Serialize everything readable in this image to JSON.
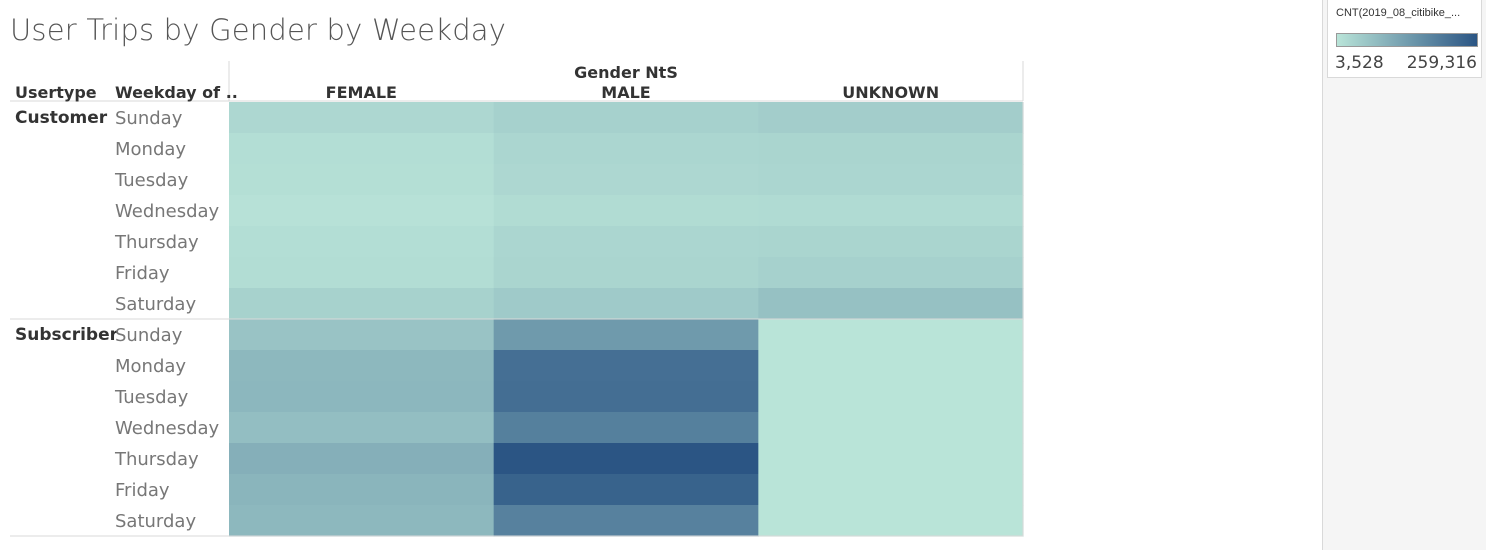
{
  "chart_data": {
    "type": "heatmap",
    "title": "User Trips by Gender by Weekday",
    "column_field_label": "Gender NtS",
    "row_field_labels": [
      "Usertype",
      "Weekday of .."
    ],
    "columns": [
      "FEMALE",
      "MALE",
      "UNKNOWN"
    ],
    "row_groups": [
      {
        "name": "Customer",
        "days": [
          "Sunday",
          "Monday",
          "Tuesday",
          "Wednesday",
          "Thursday",
          "Friday",
          "Saturday"
        ],
        "values": [
          [
            26000,
            37000,
            44000
          ],
          [
            14000,
            28000,
            30000
          ],
          [
            12000,
            26000,
            29000
          ],
          [
            8000,
            18000,
            20000
          ],
          [
            14000,
            28000,
            30000
          ],
          [
            16000,
            31000,
            37000
          ],
          [
            36000,
            50000,
            67000
          ]
        ]
      },
      {
        "name": "Subscriber",
        "days": [
          "Sunday",
          "Monday",
          "Tuesday",
          "Wednesday",
          "Thursday",
          "Friday",
          "Saturday"
        ],
        "values": [
          [
            62000,
            136000,
            3700
          ],
          [
            83000,
            212000,
            4200
          ],
          [
            84000,
            214000,
            4200
          ],
          [
            72000,
            183000,
            4200
          ],
          [
            98000,
            259316,
            4300
          ],
          [
            88000,
            235000,
            4300
          ],
          [
            82000,
            180000,
            3528
          ]
        ]
      }
    ],
    "color_legend": {
      "title": "CNT(2019_08_citibike_...",
      "min": 3528,
      "max": 259316,
      "min_label": "3,528",
      "max_label": "259,316",
      "min_color": "#b9e4d8",
      "max_color": "#2b5584"
    }
  }
}
